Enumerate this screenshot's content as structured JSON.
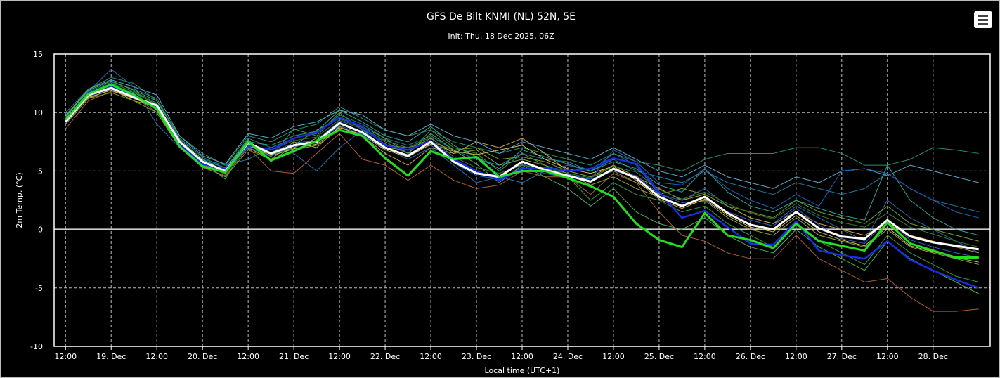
{
  "chart_data": {
    "type": "line",
    "title": "GFS De Bilt KNMI (NL) 52N, 5E",
    "subtitle": "Init: Thu, 18 Dec 2025, 06Z",
    "ylabel": "2m Temp. (°C)",
    "xlabel": "Local time (UTC+1)",
    "ylim": [
      -10,
      15
    ],
    "yticks": [
      -10,
      -5,
      0,
      5,
      10,
      15
    ],
    "x_hours_from": "18 Dec 2025 12:00",
    "x_range_hours": [
      -3,
      243
    ],
    "x_ticks": [
      {
        "h": 0,
        "label": "12:00"
      },
      {
        "h": 12,
        "label": "19. Dec"
      },
      {
        "h": 24,
        "label": "12:00"
      },
      {
        "h": 36,
        "label": "20. Dec"
      },
      {
        "h": 48,
        "label": "12:00"
      },
      {
        "h": 60,
        "label": "21. Dec"
      },
      {
        "h": 72,
        "label": "12:00"
      },
      {
        "h": 84,
        "label": "22. Dec"
      },
      {
        "h": 96,
        "label": "12:00"
      },
      {
        "h": 108,
        "label": "23. Dec"
      },
      {
        "h": 120,
        "label": "12:00"
      },
      {
        "h": 132,
        "label": "24. Dec"
      },
      {
        "h": 144,
        "label": "12:00"
      },
      {
        "h": 156,
        "label": "25. Dec"
      },
      {
        "h": 168,
        "label": "12:00"
      },
      {
        "h": 180,
        "label": "26. Dec"
      },
      {
        "h": 192,
        "label": "12:00"
      },
      {
        "h": 204,
        "label": "27. Dec"
      },
      {
        "h": 216,
        "label": "12:00"
      },
      {
        "h": 228,
        "label": "28. Dec"
      }
    ],
    "x": [
      0,
      6,
      12,
      18,
      24,
      30,
      36,
      42,
      48,
      54,
      60,
      66,
      72,
      78,
      84,
      90,
      96,
      102,
      108,
      114,
      120,
      126,
      132,
      138,
      144,
      150,
      156,
      162,
      168,
      174,
      180,
      186,
      192,
      198,
      204,
      210,
      216,
      222,
      228,
      234,
      240
    ],
    "grid": true,
    "series": [
      {
        "color": "#ffffff",
        "width": 3,
        "values": [
          9.2,
          11.5,
          12.1,
          11.3,
          10.6,
          7.5,
          5.8,
          5.0,
          7.4,
          6.5,
          7.2,
          7.5,
          9.1,
          8.3,
          7.0,
          6.3,
          7.5,
          5.8,
          4.8,
          4.5,
          5.8,
          5.1,
          4.6,
          4.1,
          5.2,
          4.4,
          2.8,
          2.0,
          2.8,
          1.4,
          0.4,
          0.0,
          1.5,
          0.1,
          -0.6,
          -0.8,
          0.8,
          -0.6,
          -1.1,
          -1.4,
          -1.7
        ]
      },
      {
        "color": "#22dd22",
        "width": 3,
        "values": [
          9.4,
          11.6,
          12.4,
          11.5,
          10.3,
          7.1,
          5.4,
          4.9,
          7.5,
          5.9,
          6.7,
          7.6,
          8.5,
          8.0,
          6.1,
          4.6,
          6.7,
          6.0,
          6.2,
          4.5,
          5.0,
          5.0,
          4.4,
          3.7,
          2.8,
          0.5,
          -0.9,
          -1.5,
          1.4,
          -0.5,
          -0.9,
          -1.6,
          0.5,
          -1.0,
          -1.4,
          -1.8,
          0.6,
          -1.2,
          -1.8,
          -2.4,
          -2.4
        ]
      },
      {
        "color": "#1a2ee0",
        "width": 2.5,
        "values": [
          9.3,
          11.7,
          12.3,
          11.4,
          10.4,
          7.3,
          5.6,
          5.2,
          7.2,
          6.8,
          7.8,
          8.3,
          9.6,
          8.8,
          7.2,
          6.8,
          7.6,
          6.0,
          5.0,
          4.2,
          5.2,
          5.3,
          5.0,
          5.2,
          6.1,
          5.6,
          3.2,
          1.0,
          1.6,
          0.2,
          -1.2,
          -1.3,
          0.7,
          -1.8,
          -2.2,
          -2.5,
          -1.0,
          -2.6,
          -3.5,
          -4.3,
          -5.0
        ]
      },
      {
        "color": "#1f6fb0",
        "width": 1,
        "values": [
          9.0,
          11.8,
          13.7,
          12.2,
          9.0,
          7.0,
          6.0,
          5.5,
          6.0,
          7.0,
          6.5,
          5.0,
          7.0,
          8.5,
          7.0,
          6.0,
          7.0,
          5.5,
          4.0,
          4.5,
          4.0,
          5.0,
          5.5,
          5.0,
          6.5,
          5.5,
          3.0,
          2.5,
          3.5,
          2.0,
          1.0,
          0.5,
          2.0,
          1.0,
          0.0,
          -1.0,
          2.5,
          1.0,
          0.0,
          -1.0,
          -2.0
        ]
      },
      {
        "color": "#2a8f6a",
        "width": 1,
        "values": [
          10.0,
          12.0,
          13.0,
          12.5,
          11.0,
          8.0,
          6.5,
          5.5,
          8.0,
          7.5,
          8.5,
          9.0,
          10.5,
          9.5,
          8.5,
          8.0,
          8.5,
          7.5,
          7.0,
          6.5,
          7.0,
          6.5,
          6.0,
          5.5,
          6.5,
          5.8,
          5.5,
          5.0,
          6.0,
          6.5,
          6.5,
          6.5,
          7.0,
          7.0,
          6.5,
          5.5,
          5.5,
          6.0,
          7.0,
          6.8,
          6.5
        ]
      },
      {
        "color": "#1e7fa0",
        "width": 1,
        "values": [
          9.8,
          11.8,
          12.6,
          12.0,
          11.2,
          7.8,
          6.2,
          5.2,
          7.8,
          7.0,
          7.8,
          8.2,
          9.8,
          9.0,
          7.8,
          7.2,
          8.0,
          6.8,
          6.0,
          5.5,
          6.5,
          6.0,
          5.8,
          5.0,
          6.0,
          5.0,
          4.5,
          4.0,
          5.0,
          4.0,
          3.5,
          3.0,
          4.0,
          3.5,
          3.0,
          3.5,
          4.8,
          3.5,
          2.5,
          2.0,
          1.5
        ]
      },
      {
        "color": "#c8a040",
        "width": 1,
        "values": [
          9.0,
          11.2,
          12.0,
          11.0,
          10.5,
          7.2,
          5.5,
          5.0,
          7.0,
          6.0,
          7.5,
          7.0,
          8.8,
          8.0,
          6.5,
          5.5,
          7.0,
          6.5,
          7.5,
          7.0,
          7.8,
          6.5,
          5.0,
          4.5,
          5.5,
          4.5,
          3.5,
          2.5,
          3.0,
          2.0,
          1.0,
          0.5,
          1.5,
          0.5,
          0.0,
          -0.5,
          0.5,
          -0.5,
          -1.0,
          -1.5,
          -2.0
        ]
      },
      {
        "color": "#b05a30",
        "width": 1,
        "values": [
          8.6,
          11.0,
          11.8,
          11.4,
          10.0,
          7.0,
          5.3,
          4.6,
          7.0,
          5.0,
          4.8,
          6.5,
          8.2,
          6.0,
          5.5,
          4.2,
          5.5,
          4.2,
          3.5,
          3.8,
          5.0,
          4.5,
          4.5,
          3.0,
          4.8,
          4.0,
          1.5,
          -0.5,
          -1.0,
          -2.0,
          -2.5,
          -2.5,
          -0.5,
          -2.5,
          -3.5,
          -4.5,
          -4.2,
          -5.8,
          -7.0,
          -7.0,
          -6.8
        ]
      },
      {
        "color": "#2e9e3e",
        "width": 1,
        "values": [
          9.5,
          11.3,
          12.5,
          11.8,
          10.8,
          7.5,
          5.8,
          4.3,
          7.6,
          6.2,
          8.6,
          8.0,
          10.0,
          8.5,
          7.5,
          6.5,
          8.5,
          7.0,
          6.5,
          5.0,
          6.5,
          5.5,
          4.5,
          2.5,
          4.0,
          3.0,
          2.5,
          1.5,
          2.0,
          0.5,
          -0.5,
          -1.5,
          0.5,
          -1.0,
          -2.0,
          -3.0,
          -0.5,
          -2.0,
          -3.0,
          -4.0,
          -4.5
        ]
      },
      {
        "color": "#8fa33a",
        "width": 1,
        "values": [
          9.3,
          11.5,
          12.2,
          11.6,
          10.2,
          7.4,
          5.6,
          4.8,
          7.3,
          6.4,
          7.0,
          7.8,
          8.8,
          8.0,
          7.0,
          6.8,
          7.8,
          6.5,
          6.8,
          5.5,
          6.0,
          5.5,
          4.8,
          3.8,
          4.5,
          3.5,
          2.8,
          2.0,
          2.5,
          1.0,
          0.0,
          -0.5,
          1.0,
          -0.5,
          -1.0,
          -1.5,
          0.0,
          -1.5,
          -2.0,
          -2.5,
          -3.0
        ]
      },
      {
        "color": "#3a5fc8",
        "width": 1,
        "values": [
          9.1,
          11.4,
          12.0,
          11.2,
          10.5,
          7.3,
          5.7,
          5.1,
          7.1,
          6.6,
          7.4,
          7.6,
          9.3,
          8.6,
          7.3,
          6.5,
          7.2,
          5.9,
          4.9,
          4.6,
          5.6,
          5.0,
          4.7,
          4.3,
          5.0,
          4.6,
          3.0,
          2.3,
          2.4,
          1.5,
          0.8,
          0.3,
          1.8,
          0.4,
          -0.8,
          -1.2,
          0.9,
          -0.9,
          -1.5,
          -2.0,
          -2.4
        ]
      },
      {
        "color": "#4caf50",
        "width": 1,
        "values": [
          9.6,
          11.9,
          12.7,
          11.9,
          11.0,
          7.7,
          6.0,
          5.0,
          7.7,
          5.8,
          7.2,
          8.5,
          9.5,
          8.8,
          7.8,
          6.5,
          8.2,
          6.8,
          5.6,
          4.0,
          5.5,
          4.5,
          3.5,
          2.0,
          3.5,
          1.5,
          0.5,
          0.0,
          1.0,
          -0.5,
          -1.5,
          -2.0,
          0.0,
          -1.5,
          -2.5,
          -3.5,
          -1.0,
          -2.5,
          -3.5,
          -4.5,
          -5.5
        ]
      },
      {
        "color": "#5aa8c8",
        "width": 1,
        "values": [
          9.7,
          12.0,
          12.8,
          12.2,
          11.5,
          8.0,
          6.3,
          5.6,
          8.2,
          7.8,
          8.8,
          9.2,
          10.2,
          9.8,
          8.5,
          8.0,
          9.0,
          8.0,
          7.5,
          6.5,
          7.5,
          7.0,
          6.5,
          6.0,
          7.0,
          6.0,
          5.0,
          4.5,
          5.5,
          4.5,
          4.0,
          3.5,
          4.5,
          4.0,
          5.0,
          5.2,
          4.6,
          5.5,
          5.0,
          4.5,
          4.0
        ]
      },
      {
        "color": "#7a9c2a",
        "width": 1,
        "values": [
          9.0,
          11.2,
          11.7,
          11.0,
          10.0,
          7.0,
          5.4,
          4.5,
          6.8,
          6.0,
          6.8,
          7.2,
          8.5,
          8.2,
          7.2,
          7.0,
          7.5,
          6.8,
          7.0,
          6.0,
          6.2,
          5.8,
          5.0,
          4.5,
          5.0,
          4.0,
          3.0,
          3.5,
          3.0,
          2.0,
          1.5,
          1.0,
          2.5,
          1.5,
          1.0,
          0.5,
          2.0,
          0.5,
          0.0,
          -0.5,
          -1.0
        ]
      },
      {
        "color": "#26a69a",
        "width": 1,
        "values": [
          9.4,
          11.6,
          12.3,
          11.7,
          10.7,
          7.6,
          5.9,
          5.3,
          7.5,
          7.2,
          8.0,
          8.4,
          10.2,
          9.2,
          8.0,
          7.5,
          8.8,
          7.2,
          6.2,
          5.2,
          6.8,
          6.2,
          5.6,
          5.0,
          5.8,
          5.2,
          3.8,
          3.2,
          5.2,
          3.2,
          2.0,
          1.5,
          2.5,
          1.8,
          1.2,
          0.8,
          5.5,
          2.5,
          1.0,
          0.0,
          -0.5
        ]
      },
      {
        "color": "#d0c050",
        "width": 1,
        "values": [
          9.2,
          11.3,
          11.9,
          11.2,
          10.4,
          7.4,
          5.5,
          4.9,
          7.2,
          6.3,
          6.9,
          7.3,
          8.7,
          8.1,
          6.8,
          6.2,
          7.3,
          6.7,
          6.4,
          6.8,
          7.2,
          6.0,
          5.2,
          4.8,
          5.4,
          4.2,
          2.6,
          1.8,
          2.6,
          1.2,
          0.2,
          -0.2,
          1.2,
          -0.2,
          -0.9,
          -1.4,
          0.2,
          -1.4,
          -1.9,
          -2.4,
          -2.8
        ]
      },
      {
        "color": "#2d7d32",
        "width": 1,
        "values": [
          9.3,
          11.7,
          12.5,
          11.8,
          10.6,
          7.4,
          5.7,
          4.7,
          7.3,
          6.8,
          7.6,
          7.9,
          9.4,
          8.7,
          7.6,
          7.0,
          7.9,
          6.2,
          5.3,
          4.8,
          5.5,
          5.2,
          4.8,
          4.4,
          5.4,
          4.9,
          3.4,
          2.6,
          3.2,
          2.2,
          1.4,
          0.9,
          2.2,
          1.2,
          0.6,
          0.2,
          1.4,
          0.2,
          -0.4,
          -1.0,
          -1.5
        ]
      },
      {
        "color": "#1565c0",
        "width": 1,
        "values": [
          9.1,
          11.4,
          12.2,
          11.5,
          10.4,
          7.2,
          5.5,
          5.0,
          7.0,
          6.3,
          7.1,
          7.4,
          8.9,
          8.1,
          6.9,
          6.4,
          7.4,
          5.7,
          4.6,
          4.3,
          5.3,
          4.8,
          4.4,
          4.3,
          6.8,
          5.8,
          4.0,
          3.8,
          5.2,
          3.5,
          2.5,
          1.8,
          3.0,
          2.0,
          5.0,
          5.2,
          4.8,
          3.5,
          2.5,
          1.5,
          1.0
        ]
      }
    ]
  }
}
